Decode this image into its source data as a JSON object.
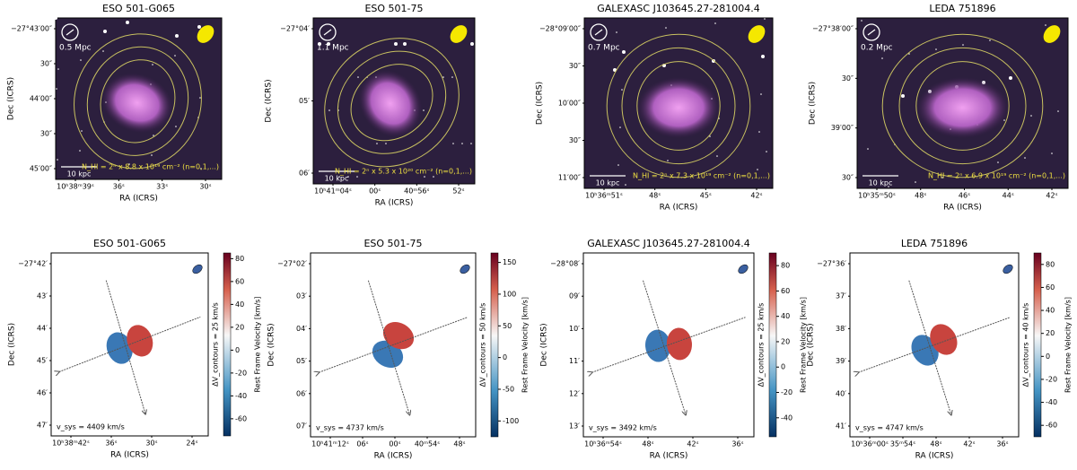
{
  "image_panels": [
    {
      "title": "ESO 501-G065",
      "yticks": [
        "−27°43′00″",
        "30″",
        "44′00″",
        "30″",
        "45′00″"
      ],
      "xticks": [
        "10ʰ38ᵐ39ˢ",
        "36ˢ",
        "33ˢ",
        "30ˢ"
      ],
      "xlabel": "RA (ICRS)",
      "ylabel": "Dec (ICRS)",
      "scale": "0.5 Mpc",
      "kpc": "10 kpc",
      "nhi": "N_HI = 2ⁿ x 8.8 x 10¹⁹ cm⁻² (n=0,1,...)"
    },
    {
      "title": "ESO 501-75",
      "yticks": [
        "−27°04′",
        "05′",
        "06′"
      ],
      "xticks": [
        "10ʰ41ᵐ04ˢ",
        "00ˢ",
        "40ᵐ56ˢ",
        "52ˢ"
      ],
      "xlabel": "RA (ICRS)",
      "ylabel": "Dec (ICRS)",
      "scale": "1.1 Mpc",
      "kpc": "10 kpc",
      "nhi": "N_HI = 2ⁿ x 5.3 x 10²⁰ cm⁻² (n=0,1,...)"
    },
    {
      "title": "GALEXASC J103645.27-281004.4",
      "yticks": [
        "−28°09′00″",
        "30″",
        "10′00″",
        "30″",
        "11′00″"
      ],
      "xticks": [
        "10ʰ36ᵐ51ˢ",
        "48ˢ",
        "45ˢ",
        "42ˢ"
      ],
      "xlabel": "RA (ICRS)",
      "ylabel": "Dec (ICRS)",
      "scale": "0.7 Mpc",
      "kpc": "10 kpc",
      "nhi": "N_HI = 2ⁿ x 7.3 x 10¹⁹ cm⁻² (n=0,1,...)"
    },
    {
      "title": "LEDA 751896",
      "yticks": [
        "−27°38′00″",
        "30″",
        "39′00″",
        "30″"
      ],
      "xticks": [
        "10ʰ35ᵐ50ˢ",
        "48ˢ",
        "46ˢ",
        "44ˢ",
        "42ˢ"
      ],
      "xlabel": "RA (ICRS)",
      "ylabel": "Dec (ICRS)",
      "scale": "0.2 Mpc",
      "kpc": "10 kpc",
      "nhi": "N_HI = 2ⁿ x 6.9 x 10¹⁹ cm⁻² (n=0,1,...)"
    }
  ],
  "velocity_panels": [
    {
      "title": "ESO 501-G065",
      "yticks": [
        "−27°42′",
        "43′",
        "44′",
        "45′",
        "46′",
        "47′"
      ],
      "xticks": [
        "10ʰ38ᵐ42ˢ",
        "36ˢ",
        "30ˢ",
        "24ˢ"
      ],
      "xlabel": "RA (ICRS)",
      "ylabel": "Dec (ICRS)",
      "cblim": [
        -75,
        85
      ],
      "cbticks": [
        80,
        60,
        40,
        20,
        0,
        -20,
        -40,
        -60
      ],
      "cblabel": "Rest Frame Velocity [km/s]",
      "dv": "ΔV_contours = 25 km/s",
      "vsys": "v_sys = 4409 km/s"
    },
    {
      "title": "ESO 501-75",
      "yticks": [
        "−27°02′",
        "03′",
        "04′",
        "05′",
        "06′",
        "07′"
      ],
      "xticks": [
        "10ʰ41ᵐ12ˢ",
        "06ˢ",
        "00ˢ",
        "40ᵐ54ˢ",
        "48ˢ"
      ],
      "xlabel": "RA (ICRS)",
      "ylabel": "Dec (ICRS)",
      "cblim": [
        -125,
        165
      ],
      "cbticks": [
        150,
        100,
        50,
        0,
        -50,
        -100
      ],
      "cblabel": "Rest Frame Velocity [km/s]",
      "dv": "ΔV_contours = 50 km/s",
      "vsys": "v_sys = 4737 km/s"
    },
    {
      "title": "GALEXASC J103645.27-281004.4",
      "yticks": [
        "−28°08′",
        "09′",
        "10′",
        "11′",
        "12′",
        "13′"
      ],
      "xticks": [
        "10ʰ36ᵐ54ˢ",
        "48ˢ",
        "42ˢ",
        "36ˢ"
      ],
      "xlabel": "RA (ICRS)",
      "ylabel": "Dec (ICRS)",
      "cblim": [
        -55,
        90
      ],
      "cbticks": [
        80,
        60,
        40,
        20,
        0,
        -20,
        -40
      ],
      "cblabel": "Rest Frame Velocity [km/s]",
      "dv": "ΔV_contours = 25 km/s",
      "vsys": "v_sys = 3492 km/s"
    },
    {
      "title": "LEDA 751896",
      "yticks": [
        "−27°36′",
        "37′",
        "38′",
        "39′",
        "40′",
        "41′"
      ],
      "xticks": [
        "10ʰ36ᵐ00ˢ",
        "35ᵐ54ˢ",
        "48ˢ",
        "42ˢ",
        "36ˢ"
      ],
      "xlabel": "RA (ICRS)",
      "ylabel": "Dec (ICRS)",
      "cblim": [
        -70,
        90
      ],
      "cbticks": [
        80,
        60,
        40,
        20,
        0,
        -20,
        -40,
        -60
      ],
      "cblabel": "Rest Frame Velocity [km/s]",
      "dv": "ΔV_contours = 40 km/s",
      "vsys": "v_sys = 4747 km/s"
    }
  ]
}
